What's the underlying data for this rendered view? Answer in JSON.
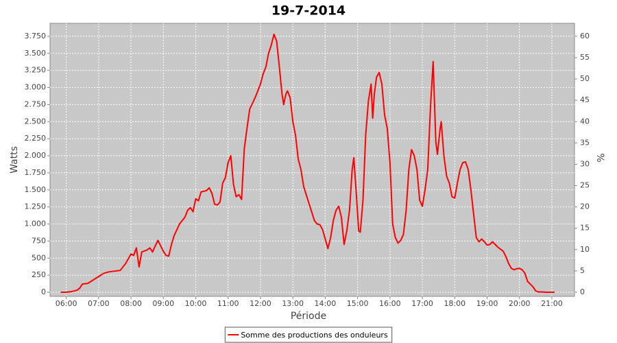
{
  "chart_data": {
    "type": "line",
    "title": "19-7-2014",
    "xlabel": "Période",
    "ylabel": "Watts",
    "y2label": "%",
    "x": [
      "05:50",
      "06:00",
      "06:10",
      "06:20",
      "06:25",
      "06:30",
      "06:40",
      "06:50",
      "07:00",
      "07:10",
      "07:20",
      "07:30",
      "07:40",
      "07:50",
      "08:00",
      "08:05",
      "08:10",
      "08:15",
      "08:20",
      "08:30",
      "08:35",
      "08:40",
      "08:45",
      "08:50",
      "09:00",
      "09:05",
      "09:10",
      "09:15",
      "09:20",
      "09:30",
      "09:40",
      "09:45",
      "09:50",
      "09:55",
      "10:00",
      "10:05",
      "10:10",
      "10:20",
      "10:25",
      "10:30",
      "10:35",
      "10:40",
      "10:45",
      "10:50",
      "10:55",
      "11:00",
      "11:05",
      "11:10",
      "11:15",
      "11:20",
      "11:25",
      "11:30",
      "11:35",
      "11:40",
      "11:50",
      "12:00",
      "12:05",
      "12:10",
      "12:15",
      "12:20",
      "12:25",
      "12:30",
      "12:35",
      "12:40",
      "12:43",
      "12:47",
      "12:50",
      "12:55",
      "13:00",
      "13:05",
      "13:10",
      "13:15",
      "13:20",
      "13:30",
      "13:40",
      "13:45",
      "13:50",
      "13:55",
      "14:00",
      "14:05",
      "14:10",
      "14:15",
      "14:20",
      "14:25",
      "14:30",
      "14:35",
      "14:40",
      "14:45",
      "14:50",
      "14:53",
      "14:58",
      "15:02",
      "15:05",
      "15:10",
      "15:15",
      "15:20",
      "15:25",
      "15:28",
      "15:31",
      "15:35",
      "15:40",
      "15:45",
      "15:50",
      "15:55",
      "16:00",
      "16:05",
      "16:10",
      "16:15",
      "16:20",
      "16:25",
      "16:30",
      "16:35",
      "16:40",
      "16:45",
      "16:50",
      "16:55",
      "17:00",
      "17:05",
      "17:10",
      "17:15",
      "17:20",
      "17:25",
      "17:28",
      "17:33",
      "17:35",
      "17:40",
      "17:45",
      "17:50",
      "17:55",
      "18:00",
      "18:05",
      "18:10",
      "18:15",
      "18:20",
      "18:25",
      "18:30",
      "18:35",
      "18:40",
      "18:45",
      "18:50",
      "18:55",
      "19:00",
      "19:05",
      "19:10",
      "19:15",
      "19:20",
      "19:25",
      "19:30",
      "19:35",
      "19:40",
      "19:45",
      "19:50",
      "19:55",
      "20:00",
      "20:05",
      "20:10",
      "20:15",
      "20:20",
      "20:25",
      "20:30",
      "20:35",
      "20:40",
      "20:50",
      "21:00",
      "21:05"
    ],
    "series": [
      {
        "name": "Somme des productions des onduleurs",
        "color": "#ff0000",
        "values": [
          0,
          0,
          10,
          30,
          60,
          120,
          130,
          180,
          230,
          280,
          300,
          310,
          320,
          420,
          560,
          540,
          650,
          370,
          590,
          620,
          650,
          590,
          680,
          760,
          600,
          540,
          530,
          700,
          830,
          1000,
          1100,
          1200,
          1240,
          1180,
          1370,
          1340,
          1470,
          1490,
          1530,
          1450,
          1290,
          1280,
          1320,
          1600,
          1680,
          1900,
          2000,
          1580,
          1400,
          1430,
          1360,
          2100,
          2400,
          2680,
          2850,
          3050,
          3200,
          3300,
          3500,
          3620,
          3780,
          3680,
          3300,
          2900,
          2750,
          2900,
          2950,
          2850,
          2500,
          2300,
          1950,
          1800,
          1550,
          1300,
          1050,
          1000,
          990,
          920,
          780,
          640,
          800,
          1050,
          1200,
          1260,
          1100,
          700,
          900,
          1200,
          1800,
          1970,
          1400,
          900,
          880,
          1350,
          2300,
          2800,
          3050,
          2550,
          2900,
          3150,
          3220,
          3050,
          2600,
          2400,
          1900,
          1000,
          800,
          720,
          760,
          850,
          1200,
          1800,
          2090,
          2000,
          1800,
          1350,
          1260,
          1500,
          1800,
          2700,
          3380,
          2200,
          2020,
          2400,
          2500,
          2000,
          1700,
          1600,
          1400,
          1380,
          1600,
          1800,
          1900,
          1910,
          1800,
          1500,
          1150,
          800,
          740,
          780,
          740,
          690,
          700,
          740,
          700,
          660,
          630,
          600,
          520,
          420,
          350,
          330,
          345,
          350,
          330,
          280,
          160,
          120,
          80,
          20,
          5,
          5,
          0,
          0,
          0
        ]
      }
    ],
    "xlim": [
      "05:30",
      "21:42"
    ],
    "xticks": [
      "06:00",
      "07:00",
      "08:00",
      "09:00",
      "10:00",
      "11:00",
      "12:00",
      "13:00",
      "14:00",
      "15:00",
      "16:00",
      "17:00",
      "18:00",
      "19:00",
      "20:00",
      "21:00"
    ],
    "ylim": [
      -60,
      3940
    ],
    "yticks": [
      0,
      250,
      500,
      750,
      {
        "value": 1000,
        "label": "1.000"
      },
      {
        "value": 1250,
        "label": "1.250"
      },
      {
        "value": 1500,
        "label": "1.500"
      },
      {
        "value": 1750,
        "label": "1.750"
      },
      {
        "value": 2000,
        "label": "2.000"
      },
      {
        "value": 2250,
        "label": "2.250"
      },
      {
        "value": 2500,
        "label": "2.500"
      },
      {
        "value": 2750,
        "label": "2.750"
      },
      {
        "value": 3000,
        "label": "3.000"
      },
      {
        "value": 3250,
        "label": "3.250"
      },
      {
        "value": 3500,
        "label": "3.500"
      },
      {
        "value": 3750,
        "label": "3.750"
      }
    ],
    "y2lim": [
      -0.96,
      63.04
    ],
    "y2ticks": [
      0,
      5,
      10,
      15,
      20,
      25,
      30,
      35,
      40,
      45,
      50,
      55,
      60
    ],
    "grid": true,
    "background": "#c8c8c8",
    "legend": "bottom"
  }
}
